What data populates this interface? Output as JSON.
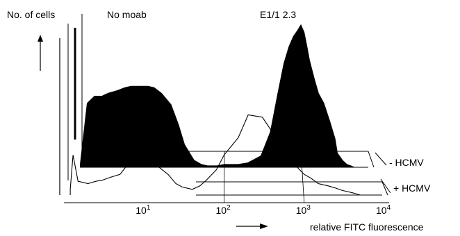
{
  "chart_data": {
    "type": "area",
    "subtype": "stacked-3d-flow-cytometry-histograms",
    "ylabel": "No. of cells",
    "xlabel": "relative FITC fluorescence",
    "x_scale": "log",
    "xlim": [
      1,
      10000
    ],
    "tick_labels": [
      {
        "base": "10",
        "exp": "1",
        "value": 10
      },
      {
        "base": "10",
        "exp": "2",
        "value": 100
      },
      {
        "base": "10",
        "exp": "3",
        "value": 1000
      },
      {
        "base": "10",
        "exp": "4",
        "value": 10000
      }
    ],
    "panel_labels": [
      "No moab",
      "E1/1 2.3"
    ],
    "series": [
      {
        "name": "- HCMV",
        "style": "filled",
        "x": [
          1.3,
          1.6,
          2,
          2.5,
          3,
          4,
          5,
          6,
          8,
          10,
          12,
          15,
          20,
          25,
          30,
          40,
          50,
          60,
          80,
          100,
          150,
          200,
          300,
          400,
          500,
          600,
          700,
          800,
          900,
          1000,
          1100,
          1200,
          1300,
          1500,
          1700,
          2000,
          2400,
          2800,
          3000,
          3500,
          4000,
          4500,
          5000
        ],
        "y": [
          0.02,
          0.45,
          0.5,
          0.5,
          0.52,
          0.54,
          0.56,
          0.57,
          0.57,
          0.57,
          0.56,
          0.52,
          0.44,
          0.3,
          0.16,
          0.05,
          0.02,
          0.01,
          0.01,
          0.02,
          0.02,
          0.03,
          0.08,
          0.25,
          0.52,
          0.73,
          0.85,
          0.92,
          0.96,
          1.0,
          0.95,
          0.85,
          0.75,
          0.62,
          0.52,
          0.45,
          0.32,
          0.2,
          0.1,
          0.05,
          0.02,
          0.01,
          0.0
        ]
      },
      {
        "name": "+ HCMV",
        "style": "outline",
        "x": [
          1.2,
          1.3,
          1.5,
          2,
          2.5,
          3,
          4,
          5,
          6,
          8,
          10,
          12,
          15,
          20,
          25,
          30,
          40,
          50,
          60,
          80,
          100,
          150,
          200,
          300,
          400,
          500,
          600,
          700,
          800,
          1000,
          1200,
          1500,
          2000,
          2500,
          3000,
          3500,
          4000,
          4500,
          5000
        ],
        "y": [
          0.05,
          0.35,
          0.12,
          0.1,
          0.12,
          0.13,
          0.16,
          0.18,
          0.25,
          0.33,
          0.36,
          0.33,
          0.25,
          0.18,
          0.1,
          0.07,
          0.05,
          0.08,
          0.13,
          0.22,
          0.35,
          0.5,
          0.7,
          0.68,
          0.55,
          0.42,
          0.3,
          0.28,
          0.25,
          0.18,
          0.15,
          0.1,
          0.08,
          0.06,
          0.04,
          0.03,
          0.02,
          0.01,
          0.0
        ]
      }
    ],
    "grid": false
  }
}
